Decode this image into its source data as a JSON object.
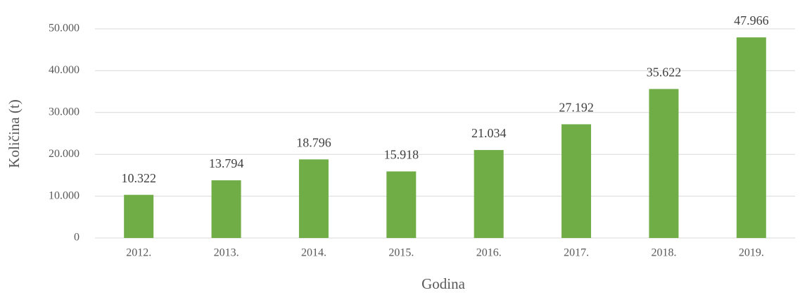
{
  "chart_data": {
    "type": "bar",
    "xlabel": "Godina",
    "ylabel": "Količina (t)",
    "categories": [
      "2012.",
      "2013.",
      "2014.",
      "2015.",
      "2016.",
      "2017.",
      "2018.",
      "2019."
    ],
    "values": [
      10322,
      13794,
      18796,
      15918,
      21034,
      27192,
      35622,
      47966
    ],
    "value_labels": [
      "10.322",
      "13.794",
      "18.796",
      "15.918",
      "21.034",
      "27.192",
      "35.622",
      "47.966"
    ],
    "color": "#70ad47",
    "ylim": [
      0,
      50000
    ],
    "yticks": [
      0,
      {
        "value": 10000,
        "label": "10.000"
      },
      {
        "value": 20000,
        "label": "20.000"
      },
      {
        "value": 30000,
        "label": "30.000"
      },
      {
        "value": 40000,
        "label": "40.000"
      },
      {
        "value": 50000,
        "label": "50.000"
      }
    ],
    "grid": true
  }
}
